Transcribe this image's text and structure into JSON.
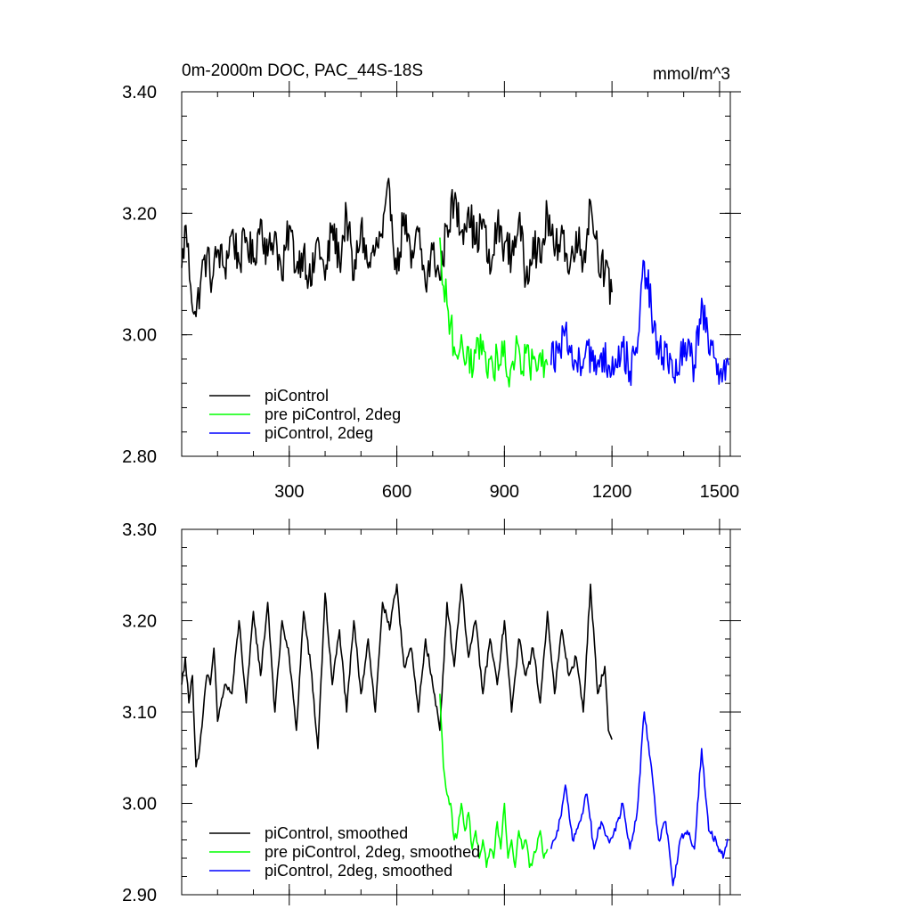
{
  "chart_data": [
    {
      "type": "line",
      "title": "0m-2000m DOC, PAC_44S-18S",
      "units": "mmol/m^3",
      "xlabel": "",
      "ylabel": "",
      "xlim": [
        0,
        1530
      ],
      "ylim": [
        2.8,
        3.4
      ],
      "xticks": [
        300,
        600,
        900,
        1200,
        1500
      ],
      "yticks": [
        "2.80",
        "3.00",
        "3.20",
        "3.40"
      ],
      "yminor_step": 0.04,
      "xminor_step": 100,
      "legend_position": "bottom-left",
      "series": [
        {
          "name": "piControl",
          "color": "#000000",
          "x": [
            0,
            12,
            25,
            40,
            55,
            70,
            85,
            100,
            120,
            140,
            160,
            180,
            200,
            220,
            240,
            260,
            280,
            300,
            320,
            340,
            360,
            380,
            400,
            420,
            440,
            460,
            480,
            500,
            520,
            540,
            560,
            580,
            600,
            620,
            640,
            660,
            680,
            700,
            720,
            740,
            760,
            780,
            800,
            820,
            840,
            860,
            880,
            900,
            920,
            940,
            960,
            980,
            1000,
            1020,
            1040,
            1060,
            1080,
            1100,
            1120,
            1140,
            1160,
            1180,
            1200
          ],
          "y": [
            3.11,
            3.18,
            3.08,
            3.03,
            3.1,
            3.13,
            3.09,
            3.14,
            3.11,
            3.17,
            3.12,
            3.16,
            3.12,
            3.19,
            3.13,
            3.17,
            3.09,
            3.18,
            3.11,
            3.14,
            3.08,
            3.16,
            3.09,
            3.18,
            3.12,
            3.2,
            3.09,
            3.18,
            3.11,
            3.14,
            3.16,
            3.24,
            3.1,
            3.2,
            3.11,
            3.17,
            3.08,
            3.14,
            3.09,
            3.18,
            3.22,
            3.17,
            3.21,
            3.15,
            3.19,
            3.1,
            3.18,
            3.15,
            3.13,
            3.19,
            3.09,
            3.16,
            3.12,
            3.2,
            3.13,
            3.18,
            3.1,
            3.17,
            3.12,
            3.22,
            3.14,
            3.1,
            3.07
          ]
        },
        {
          "name": "pre piControl, 2deg",
          "color": "#00ff00",
          "x": [
            720,
            730,
            740,
            750,
            760,
            770,
            780,
            790,
            800,
            810,
            820,
            830,
            840,
            850,
            860,
            870,
            880,
            890,
            900,
            910,
            920,
            930,
            940,
            950,
            960,
            970,
            980,
            990,
            1000,
            1010,
            1020
          ],
          "y": [
            3.16,
            3.08,
            3.05,
            3.02,
            2.98,
            2.96,
            3.0,
            2.95,
            2.98,
            2.93,
            2.97,
            2.96,
            2.99,
            2.94,
            2.96,
            2.93,
            2.97,
            2.95,
            2.99,
            2.93,
            2.95,
            2.96,
            2.98,
            2.94,
            2.97,
            2.95,
            2.96,
            2.94,
            2.97,
            2.93,
            2.95
          ]
        },
        {
          "name": "piControl, 2deg",
          "color": "#0000ff",
          "x": [
            1030,
            1050,
            1070,
            1090,
            1110,
            1130,
            1150,
            1170,
            1190,
            1210,
            1230,
            1250,
            1270,
            1290,
            1310,
            1330,
            1350,
            1370,
            1390,
            1410,
            1430,
            1450,
            1470,
            1490,
            1510,
            1525
          ],
          "y": [
            2.95,
            2.97,
            3.01,
            2.95,
            2.96,
            2.99,
            2.94,
            2.97,
            2.95,
            2.96,
            2.98,
            2.94,
            2.97,
            3.12,
            3.04,
            2.96,
            2.98,
            2.93,
            2.96,
            2.97,
            2.95,
            3.06,
            2.97,
            2.96,
            2.94,
            2.95
          ]
        }
      ]
    },
    {
      "type": "line",
      "title": "",
      "units": "",
      "xlabel": "",
      "ylabel": "",
      "xlim": [
        0,
        1530
      ],
      "ylim": [
        2.9,
        3.3
      ],
      "xticks": [
        300,
        600,
        900,
        1200,
        1500
      ],
      "yticks": [
        "2.90",
        "3.00",
        "3.10",
        "3.20",
        "3.30"
      ],
      "yminor_step": 0.02,
      "xminor_step": 100,
      "legend_position": "bottom-left",
      "series": [
        {
          "name": "piControl, smoothed",
          "color": "#000000",
          "x": [
            0,
            10,
            20,
            30,
            40,
            50,
            60,
            70,
            80,
            90,
            100,
            120,
            140,
            160,
            180,
            200,
            220,
            240,
            260,
            280,
            300,
            320,
            340,
            360,
            380,
            400,
            420,
            440,
            460,
            480,
            500,
            520,
            540,
            560,
            580,
            600,
            620,
            640,
            660,
            680,
            700,
            720,
            740,
            760,
            780,
            800,
            820,
            840,
            860,
            880,
            900,
            920,
            940,
            960,
            980,
            1000,
            1020,
            1040,
            1060,
            1080,
            1100,
            1120,
            1140,
            1160,
            1180,
            1190,
            1200
          ],
          "y": [
            3.13,
            3.16,
            3.11,
            3.14,
            3.04,
            3.06,
            3.1,
            3.14,
            3.13,
            3.17,
            3.09,
            3.13,
            3.12,
            3.2,
            3.11,
            3.21,
            3.14,
            3.22,
            3.1,
            3.2,
            3.16,
            3.08,
            3.21,
            3.15,
            3.06,
            3.23,
            3.13,
            3.19,
            3.1,
            3.2,
            3.12,
            3.18,
            3.1,
            3.22,
            3.19,
            3.24,
            3.15,
            3.17,
            3.1,
            3.18,
            3.13,
            3.08,
            3.22,
            3.15,
            3.24,
            3.16,
            3.2,
            3.12,
            3.18,
            3.13,
            3.2,
            3.1,
            3.18,
            3.14,
            3.17,
            3.11,
            3.21,
            3.12,
            3.19,
            3.14,
            3.16,
            3.1,
            3.24,
            3.12,
            3.15,
            3.08,
            3.07
          ]
        },
        {
          "name": "pre piControl, 2deg, smoothed",
          "color": "#00ff00",
          "x": [
            720,
            730,
            740,
            750,
            760,
            770,
            780,
            790,
            800,
            810,
            820,
            830,
            840,
            850,
            860,
            870,
            880,
            890,
            900,
            910,
            920,
            930,
            940,
            950,
            960,
            970,
            980,
            990,
            1000,
            1010,
            1020
          ],
          "y": [
            3.12,
            3.04,
            3.01,
            3.0,
            2.96,
            2.97,
            3.0,
            2.97,
            2.99,
            2.95,
            2.97,
            2.94,
            2.96,
            2.93,
            2.95,
            2.94,
            2.98,
            2.95,
            3.0,
            2.94,
            2.96,
            2.93,
            2.97,
            2.95,
            2.96,
            2.93,
            2.94,
            2.95,
            2.97,
            2.94,
            2.95
          ]
        },
        {
          "name": "piControl, 2deg, smoothed",
          "color": "#0000ff",
          "x": [
            1030,
            1050,
            1070,
            1090,
            1110,
            1130,
            1150,
            1170,
            1190,
            1210,
            1230,
            1250,
            1270,
            1290,
            1310,
            1330,
            1350,
            1370,
            1390,
            1410,
            1430,
            1450,
            1470,
            1490,
            1510,
            1525
          ],
          "y": [
            2.95,
            2.97,
            3.02,
            2.96,
            2.98,
            3.01,
            2.95,
            2.98,
            2.96,
            2.97,
            3.0,
            2.95,
            2.99,
            3.1,
            3.04,
            2.96,
            2.98,
            2.91,
            2.96,
            2.97,
            2.95,
            3.06,
            2.97,
            2.96,
            2.94,
            2.96
          ]
        }
      ]
    }
  ]
}
